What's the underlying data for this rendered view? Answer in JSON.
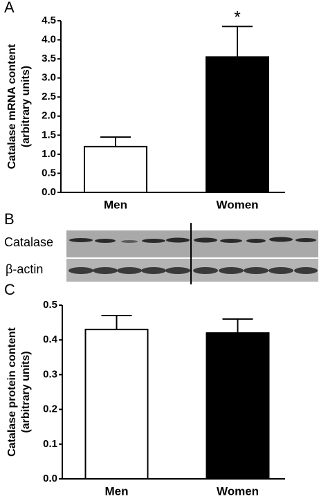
{
  "chart_data": [
    {
      "type": "bar",
      "panel_label": "A",
      "ylabel": [
        "Catalase mRNA content",
        "(arbitrary units)"
      ],
      "categories": [
        "Men",
        "Women"
      ],
      "values": [
        1.2,
        3.55
      ],
      "errors": [
        0.25,
        0.8
      ],
      "colors": [
        "#ffffff",
        "#000000"
      ],
      "annotations": [
        {
          "category": 1,
          "text": "*"
        }
      ],
      "ylim": [
        0,
        4.5
      ],
      "yticks": [
        {
          "value": 0,
          "label": "0.0"
        },
        0.5,
        {
          "value": 1,
          "label": "1.0"
        },
        1.5,
        {
          "value": 2,
          "label": "2.0"
        },
        2.5,
        {
          "value": 3,
          "label": "3.0"
        },
        3.5,
        {
          "value": 4,
          "label": "4.0"
        },
        4.5
      ]
    },
    {
      "type": "bar",
      "panel_label": "C",
      "ylabel": [
        "Catalase protein content",
        "(arbitrary units)"
      ],
      "categories": [
        "Men",
        "Women"
      ],
      "values": [
        0.43,
        0.42
      ],
      "errors": [
        0.04,
        0.04
      ],
      "colors": [
        "#ffffff",
        "#000000"
      ],
      "annotations": [],
      "ylim": [
        0,
        0.5
      ],
      "yticks": [
        {
          "value": 0,
          "label": "0.0"
        },
        0.1,
        0.2,
        0.3,
        0.4,
        0.5
      ]
    }
  ],
  "blot": {
    "panel_label": "B",
    "labels": [
      "Catalase",
      "β-actin"
    ]
  }
}
